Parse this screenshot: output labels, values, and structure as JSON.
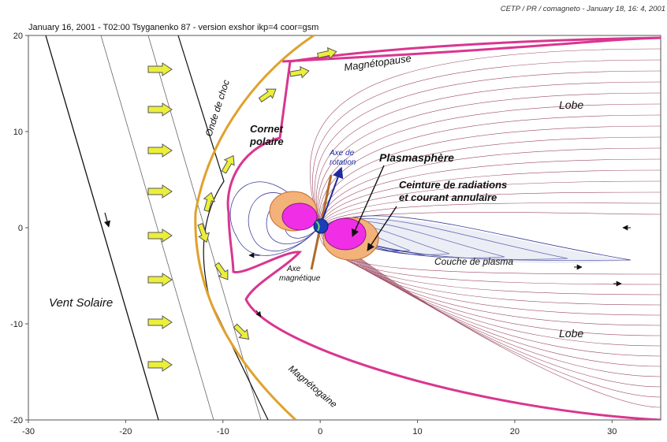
{
  "header": {
    "title_left": "January 16, 2001   - T02:00  Tsyganenko 87 - version exshor ikp=4 coor=gsm",
    "title_right": "CETP / PR / comagneto - January 18, 16: 4, 2001"
  },
  "axes": {
    "x_ticks": [
      "-30",
      "-20",
      "-10",
      "0",
      "10",
      "20",
      "30"
    ],
    "y_ticks": [
      "20",
      "10",
      "0",
      "-10",
      "-20"
    ],
    "xlim": [
      -30,
      35
    ],
    "ylim": [
      -20,
      20
    ]
  },
  "labels": {
    "vent_solaire": "Vent Solaire",
    "onde_de_choc": "Onde de choc",
    "magnetopause": "Magnétopause",
    "magnetogaine": "Magnétogaine",
    "cornet_polaire_1": "Cornet",
    "cornet_polaire_2": "polaire",
    "axe_rotation_1": "Axe de",
    "axe_rotation_2": "rotation",
    "plasmasphere": "Plasmasphère",
    "ceinture_1": "Ceinture de radiations",
    "ceinture_2": "et courant annulaire",
    "axe_magnetique_1": "Axe",
    "axe_magnetique_2": "magnétique",
    "couche_plasma": "Couche de plasma",
    "lobe_nord": "Lobe",
    "lobe_sud": "Lobe"
  },
  "colors": {
    "bow_shock": "#e0a12c",
    "magnetopause": "#d9368f",
    "plasmasphere": "#f02ee6",
    "radiation_belt": "#f2b27a",
    "field_lines_open": "#9c4a62",
    "field_lines_closed": "#3d3f9a",
    "solar_wind_arrow": "#ecef3a",
    "earth": "#1a3fb8",
    "rotation_axis": "#1e2b9e"
  },
  "icons": {
    "solar_wind_arrow": "right-arrow-icon",
    "flow_arrow": "curved-arrow-icon",
    "earth": "earth-icon"
  }
}
